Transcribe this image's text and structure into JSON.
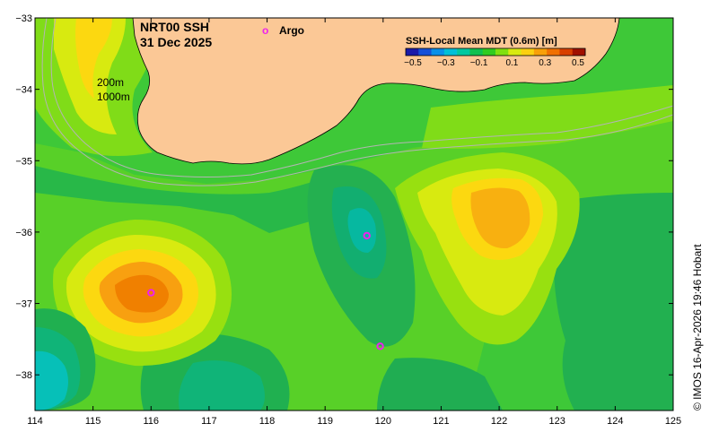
{
  "title": {
    "line1": "NRT00 SSH",
    "line2": "31 Dec 2025"
  },
  "legend_argo": {
    "marker": "o",
    "label": "Argo"
  },
  "depth_labels": [
    "200m",
    "1000m"
  ],
  "colorbar": {
    "title": "SSH-Local Mean MDT (0.6m) [m]",
    "ticks": [
      "−0.5",
      "−0.3",
      "−0.1",
      "0.1",
      "0.3",
      "0.5"
    ],
    "colors": [
      "#1a1aa8",
      "#1550d8",
      "#0a90e8",
      "#00c0d8",
      "#00c8a0",
      "#10c050",
      "#30cc20",
      "#80e010",
      "#d8ea10",
      "#fbd010",
      "#f8a008",
      "#f07000",
      "#d84000",
      "#a01000"
    ]
  },
  "axes": {
    "lon_ticks": [
      "114",
      "115",
      "116",
      "117",
      "118",
      "119",
      "120",
      "121",
      "122",
      "123",
      "124",
      "125"
    ],
    "lat_ticks": [
      "−33",
      "−34",
      "−35",
      "−36",
      "−37",
      "−38"
    ]
  },
  "credit": "© IMOS 16-Apr-2026 19:46 Hobart",
  "argo_floats": [
    {
      "lon": 116.0,
      "lat": -36.85
    },
    {
      "lon": 119.72,
      "lat": -36.05
    },
    {
      "lon": 119.95,
      "lat": -37.6
    }
  ],
  "colors": {
    "land": "#fbc896",
    "argo": "#ee22ee",
    "isobath": "#b4b4b4"
  }
}
